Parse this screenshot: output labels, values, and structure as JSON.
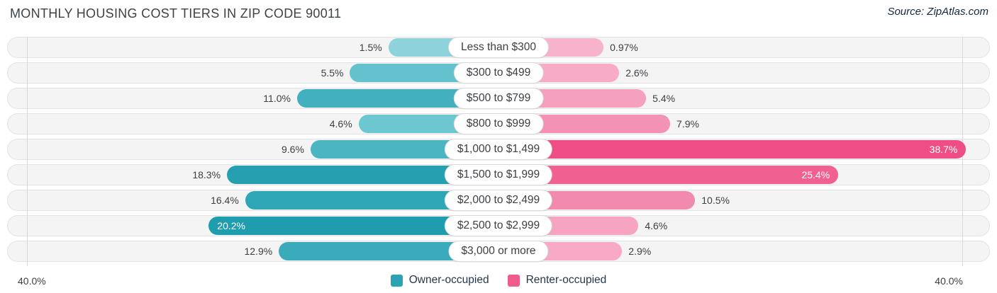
{
  "header": {
    "title": "MONTHLY HOUSING COST TIERS IN ZIP CODE 90011",
    "source_label": "Source: ZipAtlas.com"
  },
  "chart_data": {
    "type": "bar",
    "variant": "diverging-horizontal-pyramid",
    "title": "MONTHLY HOUSING COST TIERS IN ZIP CODE 90011",
    "categories": [
      "Less than $300",
      "$300 to $499",
      "$500 to $799",
      "$800 to $999",
      "$1,000 to $1,499",
      "$1,500 to $1,999",
      "$2,000 to $2,499",
      "$2,500 to $2,999",
      "$3,000 or more"
    ],
    "series": [
      {
        "name": "Owner-occupied",
        "side": "left",
        "color": "#2aa3b2",
        "values": [
          1.5,
          5.5,
          11.0,
          4.6,
          9.6,
          18.3,
          16.4,
          20.2,
          12.9
        ],
        "labels": [
          "1.5%",
          "5.5%",
          "11.0%",
          "4.6%",
          "9.6%",
          "18.3%",
          "16.4%",
          "20.2%",
          "12.9%"
        ],
        "bar_colors": [
          "#8ed3dc",
          "#63c2ce",
          "#42b0bf",
          "#6cc7d1",
          "#4cb5c2",
          "#26a0b1",
          "#2ea6b5",
          "#1f9cad",
          "#39abba"
        ]
      },
      {
        "name": "Renter-occupied",
        "side": "right",
        "color": "#ee5c8c",
        "values": [
          0.97,
          2.6,
          5.4,
          7.9,
          38.7,
          25.4,
          10.5,
          4.6,
          2.9
        ],
        "labels": [
          "0.97%",
          "2.6%",
          "5.4%",
          "7.9%",
          "38.7%",
          "25.4%",
          "10.5%",
          "4.6%",
          "2.9%"
        ],
        "bar_colors": [
          "#f7b3cb",
          "#f7abc6",
          "#f5a0bf",
          "#f492b5",
          "#ee4e85",
          "#f06090",
          "#f289ae",
          "#f6a4c2",
          "#f7a9c5"
        ]
      }
    ],
    "axis": {
      "max": 40,
      "left_end_label": "40.0%",
      "right_end_label": "40.0%"
    },
    "legend_position": "bottom",
    "grid": "edge-gridlines-only"
  }
}
